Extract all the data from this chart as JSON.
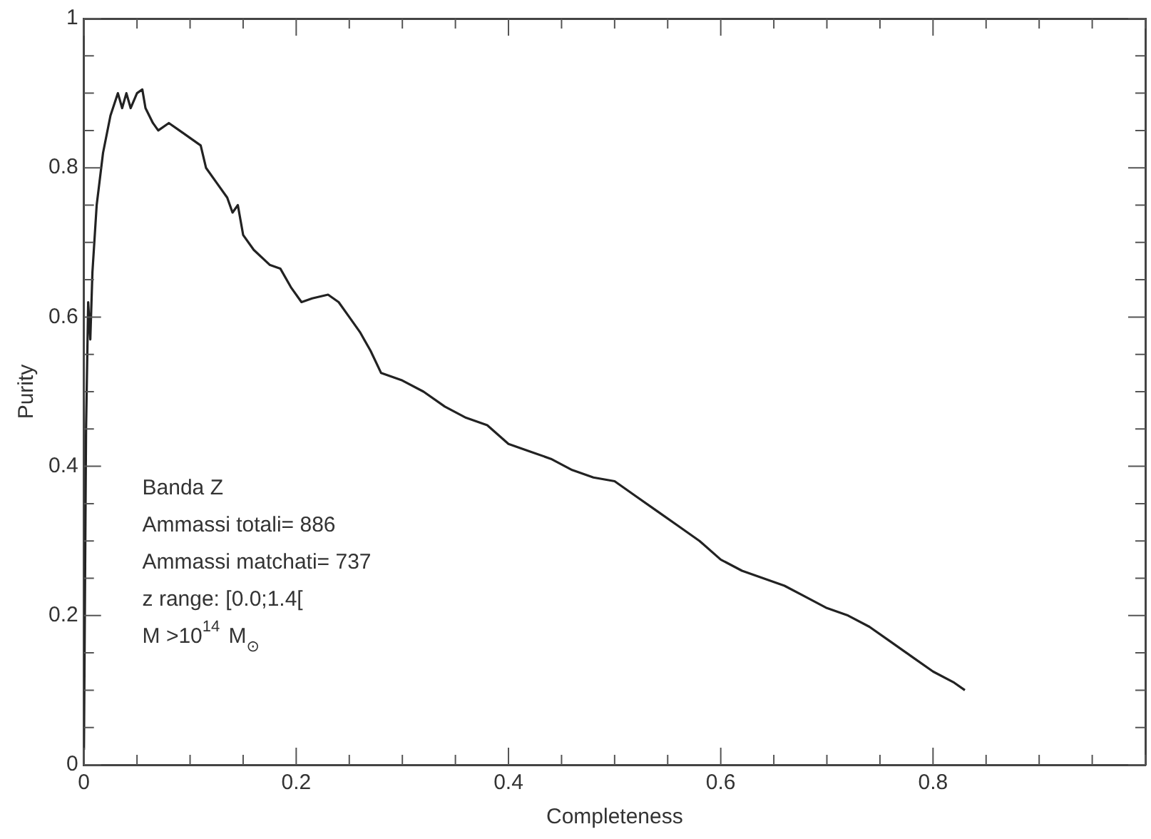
{
  "chart_data": {
    "type": "line",
    "xlabel": "Completeness",
    "ylabel": "Purity",
    "x": [
      0,
      0.002,
      0.004,
      0.006,
      0.008,
      0.012,
      0.018,
      0.025,
      0.032,
      0.036,
      0.04,
      0.044,
      0.05,
      0.055,
      0.058,
      0.065,
      0.07,
      0.08,
      0.09,
      0.1,
      0.11,
      0.115,
      0.125,
      0.135,
      0.14,
      0.145,
      0.15,
      0.16,
      0.175,
      0.185,
      0.195,
      0.205,
      0.215,
      0.23,
      0.24,
      0.25,
      0.26,
      0.27,
      0.28,
      0.3,
      0.32,
      0.34,
      0.36,
      0.38,
      0.4,
      0.42,
      0.44,
      0.46,
      0.48,
      0.5,
      0.52,
      0.54,
      0.56,
      0.58,
      0.6,
      0.62,
      0.64,
      0.66,
      0.68,
      0.7,
      0.72,
      0.74,
      0.76,
      0.78,
      0.8,
      0.82,
      0.83
    ],
    "series": [
      {
        "color": "#222222",
        "values": [
          0.02,
          0.45,
          0.62,
          0.57,
          0.66,
          0.75,
          0.82,
          0.87,
          0.9,
          0.88,
          0.9,
          0.88,
          0.9,
          0.905,
          0.88,
          0.86,
          0.85,
          0.86,
          0.85,
          0.84,
          0.83,
          0.8,
          0.78,
          0.76,
          0.74,
          0.75,
          0.71,
          0.69,
          0.67,
          0.665,
          0.64,
          0.62,
          0.625,
          0.63,
          0.62,
          0.6,
          0.58,
          0.555,
          0.525,
          0.515,
          0.5,
          0.48,
          0.465,
          0.455,
          0.43,
          0.42,
          0.41,
          0.395,
          0.385,
          0.38,
          0.36,
          0.34,
          0.32,
          0.3,
          0.275,
          0.26,
          0.25,
          0.24,
          0.225,
          0.21,
          0.2,
          0.185,
          0.165,
          0.145,
          0.125,
          0.11,
          0.1
        ]
      }
    ],
    "xlim": [
      0,
      1
    ],
    "ylim": [
      0,
      1
    ],
    "xticks": [
      0,
      {
        "value": 0.05,
        "label": null
      },
      {
        "value": 0.1,
        "label": null
      },
      {
        "value": 0.15,
        "label": null
      },
      0.2,
      {
        "value": 0.25,
        "label": null
      },
      {
        "value": 0.3,
        "label": null
      },
      {
        "value": 0.35,
        "label": null
      },
      0.4,
      {
        "value": 0.45,
        "label": null
      },
      {
        "value": 0.5,
        "label": null
      },
      {
        "value": 0.55,
        "label": null
      },
      0.6,
      {
        "value": 0.65,
        "label": null
      },
      {
        "value": 0.7,
        "label": null
      },
      {
        "value": 0.75,
        "label": null
      },
      0.8,
      {
        "value": 0.85,
        "label": null
      },
      {
        "value": 0.9,
        "label": null
      },
      {
        "value": 0.95,
        "label": null
      },
      {
        "value": 1,
        "label": null
      }
    ],
    "yticks": [
      0,
      {
        "value": 0.05,
        "label": null
      },
      {
        "value": 0.1,
        "label": null
      },
      {
        "value": 0.15,
        "label": null
      },
      0.2,
      {
        "value": 0.25,
        "label": null
      },
      {
        "value": 0.3,
        "label": null
      },
      {
        "value": 0.35,
        "label": null
      },
      0.4,
      {
        "value": 0.45,
        "label": null
      },
      {
        "value": 0.5,
        "label": null
      },
      {
        "value": 0.55,
        "label": null
      },
      0.6,
      {
        "value": 0.65,
        "label": null
      },
      {
        "value": 0.7,
        "label": null
      },
      {
        "value": 0.75,
        "label": null
      },
      0.8,
      {
        "value": 0.85,
        "label": null
      },
      {
        "value": 0.9,
        "label": null
      },
      {
        "value": 0.95,
        "label": null
      },
      1
    ],
    "grid": false,
    "legend": false,
    "marker": "none",
    "line_style": "solid",
    "annotations": [
      "Banda Z",
      "Ammassi totali= 886",
      "Ammassi matchati= 737",
      "z range: [0.0;1.4[",
      "M >10$^{14}$ M$_{⊙}$"
    ]
  }
}
